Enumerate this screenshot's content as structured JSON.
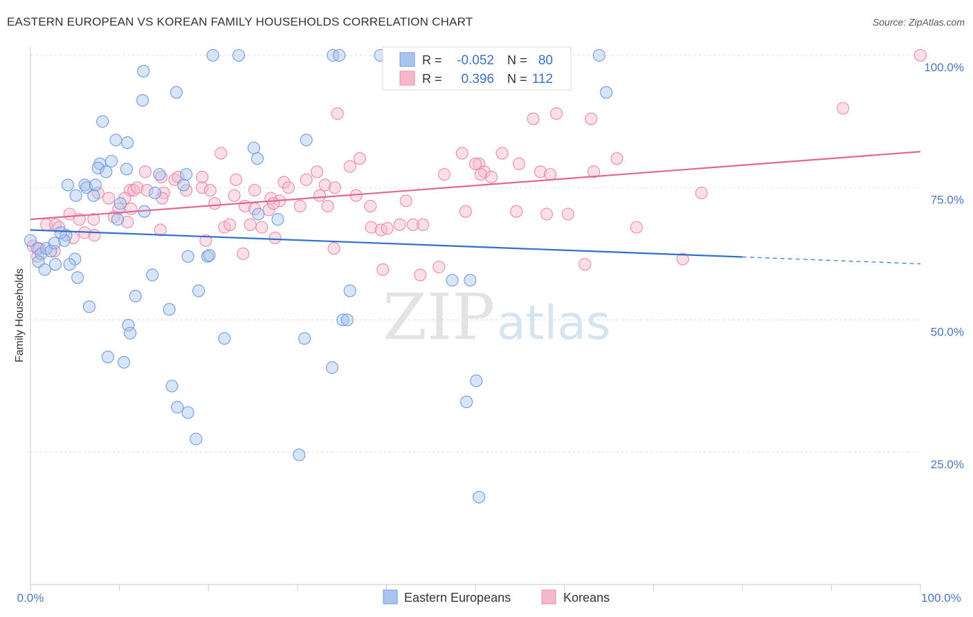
{
  "title": "EASTERN EUROPEAN VS KOREAN FAMILY HOUSEHOLDS CORRELATION CHART",
  "source": "Source: ZipAtlas.com",
  "watermark": {
    "zip": "ZIP",
    "atlas": "atlas"
  },
  "colors": {
    "blue_fill": "#a9c4ee",
    "blue_stroke": "#6f9be0",
    "blue_line": "#2f6fcc",
    "pink_fill": "#f6b9cc",
    "pink_stroke": "#e98aaa",
    "pink_line": "#e06890",
    "tick": "#4a78c2",
    "grid": "#d9d9d9"
  },
  "legend": {
    "rows": [
      {
        "r_label": "R =",
        "r_value": "-0.052",
        "n_label": "N =",
        "n_value": "80"
      },
      {
        "r_label": "R =",
        "r_value": "0.396",
        "n_label": "N =",
        "n_value": "112"
      }
    ]
  },
  "chart_data": {
    "type": "scatter",
    "title": "EASTERN EUROPEAN VS KOREAN FAMILY HOUSEHOLDS CORRELATION CHART",
    "xlabel": "",
    "ylabel": "Family Households",
    "xlim": [
      0,
      100
    ],
    "ylim": [
      0,
      100
    ],
    "x_tick_labels": [
      "0.0%",
      "100.0%"
    ],
    "y_ticks": [
      25,
      50,
      75,
      100
    ],
    "y_tick_labels": [
      "25.0%",
      "50.0%",
      "75.0%",
      "100.0%"
    ],
    "grid": true,
    "legend_position": "top-center",
    "series": [
      {
        "name": "Eastern Europeans",
        "r": -0.052,
        "n": 80,
        "trend": {
          "x0": 0,
          "y0": 67.0,
          "x1": 80,
          "y1": 61.9,
          "dash_to_x": 100,
          "dash_to_y": 60.6
        },
        "points": [
          [
            20.5,
            100
          ],
          [
            23.4,
            100
          ],
          [
            34.0,
            100
          ],
          [
            34.7,
            100
          ],
          [
            39.3,
            100
          ],
          [
            63.9,
            100
          ],
          [
            12.7,
            97
          ],
          [
            16.4,
            93
          ],
          [
            12.6,
            91.5
          ],
          [
            64.7,
            93
          ],
          [
            8.1,
            87.5
          ],
          [
            9.6,
            84
          ],
          [
            10.9,
            83.5
          ],
          [
            31.0,
            84
          ],
          [
            25.1,
            82.5
          ],
          [
            25.5,
            80.5
          ],
          [
            7.8,
            79.5
          ],
          [
            9.1,
            80
          ],
          [
            7.6,
            78.7
          ],
          [
            8.5,
            78
          ],
          [
            10.8,
            78.5
          ],
          [
            17.5,
            77.5
          ],
          [
            14.5,
            77.5
          ],
          [
            17.2,
            75.5
          ],
          [
            4.2,
            75.5
          ],
          [
            6.1,
            75.5
          ],
          [
            6.3,
            75
          ],
          [
            7.3,
            75.5
          ],
          [
            14.0,
            74
          ],
          [
            7.1,
            73.5
          ],
          [
            5.1,
            73.5
          ],
          [
            10.1,
            72
          ],
          [
            12.8,
            70.5
          ],
          [
            27.8,
            69
          ],
          [
            9.8,
            69
          ],
          [
            25.6,
            70
          ],
          [
            0.0,
            65
          ],
          [
            0.8,
            63.5
          ],
          [
            1.2,
            62.5
          ],
          [
            1.8,
            63.5
          ],
          [
            2.3,
            63
          ],
          [
            4.0,
            66
          ],
          [
            3.8,
            65
          ],
          [
            2.7,
            64.5
          ],
          [
            3.4,
            66.5
          ],
          [
            5.0,
            61.5
          ],
          [
            4.4,
            60.5
          ],
          [
            2.8,
            60.5
          ],
          [
            0.9,
            61
          ],
          [
            1.6,
            59.5
          ],
          [
            17.7,
            62
          ],
          [
            19.9,
            62
          ],
          [
            20.1,
            62.2
          ],
          [
            5.3,
            58
          ],
          [
            13.7,
            58.5
          ],
          [
            47.4,
            57.5
          ],
          [
            49.4,
            57.5
          ],
          [
            18.9,
            55.5
          ],
          [
            35.9,
            55.5
          ],
          [
            11.8,
            54.5
          ],
          [
            6.6,
            52.5
          ],
          [
            15.6,
            52
          ],
          [
            11.0,
            49
          ],
          [
            35.1,
            50
          ],
          [
            35.6,
            50
          ],
          [
            11.2,
            47.5
          ],
          [
            21.8,
            46.5
          ],
          [
            30.8,
            46.5
          ],
          [
            8.7,
            43
          ],
          [
            10.5,
            42
          ],
          [
            33.9,
            41
          ],
          [
            15.9,
            37.5
          ],
          [
            50.1,
            38.5
          ],
          [
            49.0,
            34.5
          ],
          [
            16.5,
            33.5
          ],
          [
            17.7,
            32.5
          ],
          [
            18.6,
            27.5
          ],
          [
            30.2,
            24.5
          ],
          [
            50.4,
            16.5
          ]
        ]
      },
      {
        "name": "Koreans",
        "r": 0.396,
        "n": 112,
        "trend": {
          "x0": 0,
          "y0": 69.0,
          "x1": 100,
          "y1": 81.8
        },
        "points": [
          [
            100,
            100
          ],
          [
            91.3,
            90
          ],
          [
            34.5,
            89
          ],
          [
            56.5,
            88
          ],
          [
            59.1,
            89
          ],
          [
            63.0,
            88
          ],
          [
            21.4,
            81.5
          ],
          [
            35.9,
            79
          ],
          [
            37.0,
            80.5
          ],
          [
            48.5,
            81.5
          ],
          [
            50.4,
            79.5
          ],
          [
            53.0,
            81.5
          ],
          [
            54.9,
            79.5
          ],
          [
            63.3,
            78
          ],
          [
            65.9,
            80.5
          ],
          [
            50.0,
            79.5
          ],
          [
            46.5,
            77.5
          ],
          [
            51.0,
            78
          ],
          [
            50.6,
            77.5
          ],
          [
            51.8,
            77
          ],
          [
            57.3,
            78
          ],
          [
            58.4,
            77.5
          ],
          [
            12.9,
            78
          ],
          [
            14.7,
            77
          ],
          [
            16.2,
            76.5
          ],
          [
            16.6,
            77
          ],
          [
            19.3,
            77
          ],
          [
            23.1,
            76.5
          ],
          [
            28.5,
            76
          ],
          [
            31.0,
            76.5
          ],
          [
            32.2,
            78
          ],
          [
            33.1,
            75.5
          ],
          [
            34.2,
            75
          ],
          [
            36.6,
            73.5
          ],
          [
            11.2,
            74.5
          ],
          [
            11.6,
            74.5
          ],
          [
            12.0,
            75
          ],
          [
            13.1,
            74.5
          ],
          [
            15.0,
            74
          ],
          [
            17.5,
            74.5
          ],
          [
            19.3,
            75
          ],
          [
            20.2,
            74.5
          ],
          [
            25.2,
            74.5
          ],
          [
            29.0,
            75
          ],
          [
            32.5,
            73.5
          ],
          [
            22.9,
            73.5
          ],
          [
            27.0,
            73
          ],
          [
            28.0,
            72.5
          ],
          [
            10.6,
            73
          ],
          [
            9.9,
            71
          ],
          [
            11.3,
            71
          ],
          [
            14.8,
            73
          ],
          [
            7.6,
            74
          ],
          [
            8.8,
            73
          ],
          [
            20.7,
            72
          ],
          [
            24.1,
            71.5
          ],
          [
            25.2,
            71
          ],
          [
            26.8,
            70.8
          ],
          [
            27.3,
            72
          ],
          [
            30.3,
            71.5
          ],
          [
            33.4,
            71.5
          ],
          [
            38.2,
            71.5
          ],
          [
            42.2,
            72.5
          ],
          [
            48.9,
            70.5
          ],
          [
            54.6,
            70.5
          ],
          [
            58.0,
            70
          ],
          [
            60.4,
            70
          ],
          [
            75.4,
            74
          ],
          [
            4.4,
            70
          ],
          [
            5.5,
            69
          ],
          [
            7.1,
            69
          ],
          [
            9.4,
            69.5
          ],
          [
            10.9,
            68.5
          ],
          [
            1.8,
            68
          ],
          [
            2.8,
            68
          ],
          [
            3.2,
            67.5
          ],
          [
            4.8,
            65.5
          ],
          [
            6.1,
            66.5
          ],
          [
            7.2,
            66
          ],
          [
            14.6,
            67
          ],
          [
            21.8,
            67.5
          ],
          [
            22.4,
            68
          ],
          [
            24.7,
            68
          ],
          [
            26.0,
            67.5
          ],
          [
            38.3,
            67.5
          ],
          [
            39.4,
            67
          ],
          [
            40.1,
            67.3
          ],
          [
            41.5,
            68
          ],
          [
            43.0,
            68
          ],
          [
            44.1,
            68
          ],
          [
            68.1,
            67.5
          ],
          [
            0.3,
            64
          ],
          [
            1.0,
            63.5
          ],
          [
            2.7,
            63
          ],
          [
            0.8,
            62
          ],
          [
            19.7,
            65
          ],
          [
            27.5,
            65.5
          ],
          [
            23.9,
            62.5
          ],
          [
            34.1,
            63.5
          ],
          [
            39.6,
            59.5
          ],
          [
            43.8,
            58.5
          ],
          [
            45.9,
            60
          ],
          [
            62.3,
            60.5
          ],
          [
            73.3,
            61.5
          ]
        ]
      }
    ]
  },
  "bottom_legend": [
    {
      "label": "Eastern Europeans"
    },
    {
      "label": "Koreans"
    }
  ]
}
